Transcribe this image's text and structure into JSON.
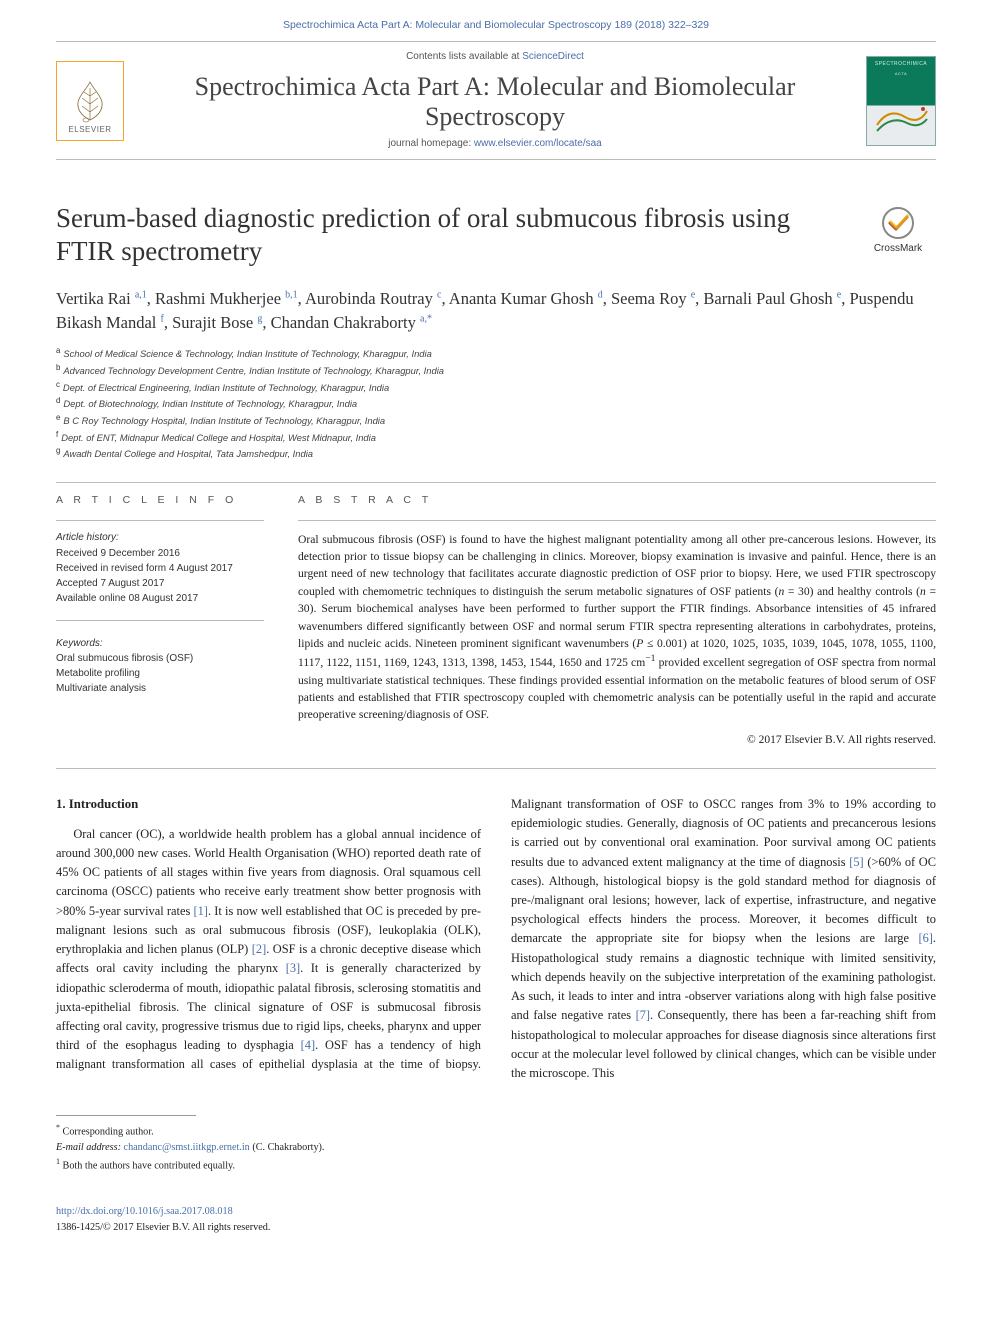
{
  "running_head": "Spectrochimica Acta Part A: Molecular and Biomolecular Spectroscopy 189 (2018) 322–329",
  "masthead": {
    "publisher_name": "ELSEVIER",
    "contents_prefix": "Contents lists available at ",
    "contents_link": "ScienceDirect",
    "journal_name": "Spectrochimica Acta Part A: Molecular and Biomolecular Spectroscopy",
    "homepage_prefix": "journal homepage: ",
    "homepage_link": "www.elsevier.com/locate/saa",
    "cover_title": "SPECTROCHIMICA",
    "cover_sub": "ACTA"
  },
  "crossmark_label": "CrossMark",
  "title": "Serum-based diagnostic prediction of oral submucous fibrosis using FTIR spectrometry",
  "authors": [
    {
      "name": "Vertika Rai",
      "sup": "a,1"
    },
    {
      "name": "Rashmi Mukherjee",
      "sup": "b,1"
    },
    {
      "name": "Aurobinda Routray",
      "sup": "c"
    },
    {
      "name": "Ananta Kumar Ghosh",
      "sup": "d"
    },
    {
      "name": "Seema Roy",
      "sup": "e"
    },
    {
      "name": "Barnali Paul Ghosh",
      "sup": "e"
    },
    {
      "name": "Puspendu Bikash Mandal",
      "sup": "f"
    },
    {
      "name": "Surajit Bose",
      "sup": "g"
    },
    {
      "name": "Chandan Chakraborty",
      "sup": "a,*"
    }
  ],
  "affiliations": [
    {
      "key": "a",
      "text": "School of Medical Science & Technology, Indian Institute of Technology, Kharagpur, India"
    },
    {
      "key": "b",
      "text": "Advanced Technology Development Centre, Indian Institute of Technology, Kharagpur, India"
    },
    {
      "key": "c",
      "text": "Dept. of Electrical Engineering, Indian Institute of Technology, Kharagpur, India"
    },
    {
      "key": "d",
      "text": "Dept. of Biotechnology, Indian Institute of Technology, Kharagpur, India"
    },
    {
      "key": "e",
      "text": "B C Roy Technology Hospital, Indian Institute of Technology, Kharagpur, India"
    },
    {
      "key": "f",
      "text": "Dept. of ENT, Midnapur Medical College and Hospital, West Midnapur, India"
    },
    {
      "key": "g",
      "text": "Awadh Dental College and Hospital, Tata Jamshedpur, India"
    }
  ],
  "info_hd": "A R T I C L E   I N F O",
  "abstract_hd": "A B S T R A C T",
  "history_hd": "Article history:",
  "history": [
    "Received 9 December 2016",
    "Received in revised form 4 August 2017",
    "Accepted 7 August 2017",
    "Available online 08 August 2017"
  ],
  "keywords_hd": "Keywords:",
  "keywords": [
    "Oral submucous fibrosis (OSF)",
    "Metabolite profiling",
    "Multivariate analysis"
  ],
  "abstract_html": "Oral submucous fibrosis (OSF) is found to have the highest malignant potentiality among all other pre-cancerous lesions. However, its detection prior to tissue biopsy can be challenging in clinics. Moreover, biopsy examination is invasive and painful. Hence, there is an urgent need of new technology that facilitates accurate diagnostic prediction of OSF prior to biopsy. Here, we used FTIR spectroscopy coupled with chemometric techniques to distinguish the serum metabolic signatures of OSF patients (<i>n</i> = 30) and healthy controls (<i>n</i> = 30). Serum biochemical analyses have been performed to further support the FTIR findings. Absorbance intensities of 45 infrared wavenumbers differed significantly between OSF and normal serum FTIR spectra representing alterations in carbohydrates, proteins, lipids and nucleic acids. Nineteen prominent significant wavenumbers (<i>P</i> ≤ 0.001) at 1020, 1025, 1035, 1039, 1045, 1078, 1055, 1100, 1117, 1122, 1151, 1169, 1243, 1313, 1398, 1453, 1544, 1650 and 1725 cm<sup>−1</sup> provided excellent segregation of OSF spectra from normal using multivariate statistical techniques. These findings provided essential information on the metabolic features of blood serum of OSF patients and established that FTIR spectroscopy coupled with chemometric analysis can be potentially useful in the rapid and accurate preoperative screening/diagnosis of OSF.",
  "copyright": "© 2017 Elsevier B.V. All rights reserved.",
  "section_heading": "1. Introduction",
  "body_html": "Oral cancer (OC), a worldwide health problem has a global annual incidence of around 300,000 new cases. World Health Organisation (WHO) reported death rate of 45% OC patients of all stages within five years from diagnosis. Oral squamous cell carcinoma (OSCC) patients who receive early treatment show better prognosis with >80% 5-year survival rates <a class=\"ref\" data-name=\"ref-link\" data-interactable=\"true\">[1]</a>. It is now well established that OC is preceded by pre-malignant lesions such as oral submucous fibrosis (OSF), leukoplakia (OLK), erythroplakia and lichen planus (OLP) <a class=\"ref\" data-name=\"ref-link\" data-interactable=\"true\">[2]</a>. OSF is a chronic deceptive disease which affects oral cavity including the pharynx <a class=\"ref\" data-name=\"ref-link\" data-interactable=\"true\">[3]</a>. It is generally characterized by idiopathic scleroderma of mouth, idiopathic palatal fibrosis, sclerosing stomatitis and juxta-epithelial fibrosis. The clinical signature of OSF is submucosal fibrosis affecting oral cavity, progressive trismus due to rigid lips, cheeks, pharynx and upper third of the esophagus leading to dysphagia <a class=\"ref\" data-name=\"ref-link\" data-interactable=\"true\">[4]</a>. OSF has a tendency of high malignant transformation all cases of epithelial dysplasia at the time of biopsy. Malignant transformation of OSF to OSCC ranges from 3% to 19% according to epidemiologic studies. Generally, diagnosis of OC patients and precancerous lesions is carried out by conventional oral examination. Poor survival among OC patients results due to advanced extent malignancy at the time of diagnosis <a class=\"ref\" data-name=\"ref-link\" data-interactable=\"true\">[5]</a> (>60% of OC cases). Although, histological biopsy is the gold standard method for diagnosis of pre-/malignant oral lesions; however, lack of expertise, infrastructure, and negative psychological effects hinders the process. Moreover, it becomes difficult to demarcate the appropriate site for biopsy when the lesions are large <a class=\"ref\" data-name=\"ref-link\" data-interactable=\"true\">[6]</a>. Histopathological study remains a diagnostic technique with limited sensitivity, which depends heavily on the subjective interpretation of the examining pathologist. As such, it leads to inter and intra -observer variations along with high false positive and false negative rates <a class=\"ref\" data-name=\"ref-link\" data-interactable=\"true\">[7]</a>. Consequently, there has been a far-reaching shift from histopathological to molecular approaches for disease diagnosis since alterations first occur at the molecular level followed by clinical changes, which can be visible under the microscope. This",
  "footnote_corresponding": "Corresponding author.",
  "footnote_email_prefix": "E-mail address: ",
  "footnote_email": "chandanc@smst.iitkgp.ernet.in",
  "footnote_email_suffix": " (C. Chakraborty).",
  "footnote_equal": "Both the authors have contributed equally.",
  "doi_link": "http://dx.doi.org/10.1016/j.saa.2017.08.018",
  "issn_line": "1386-1425/© 2017 Elsevier B.V. All rights reserved.",
  "colors": {
    "link": "#4a6eaa",
    "rule": "#bbbbbb",
    "text": "#222222",
    "logo_border": "#f5a623",
    "cover_green": "#0b7a5a"
  }
}
